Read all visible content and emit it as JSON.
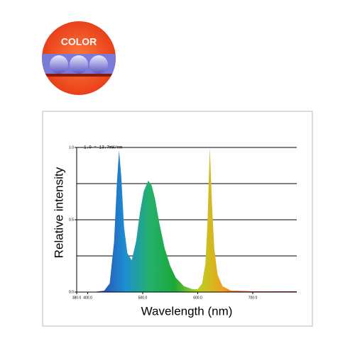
{
  "badge": {
    "label": "COLOR"
  },
  "chart_data": {
    "type": "area",
    "annotation": "1.0 = 13.7mW/nm",
    "x_label": "Wavelength (nm)",
    "y_label": "Relative intensity",
    "x": [
      380,
      410,
      430,
      440,
      448,
      453,
      457,
      461,
      466,
      472,
      480,
      488,
      495,
      502,
      510,
      516,
      522,
      530,
      540,
      550,
      560,
      575,
      590,
      600,
      608,
      614,
      618,
      622,
      626,
      630,
      636,
      645,
      660,
      700,
      780
    ],
    "values": [
      0,
      0,
      0.01,
      0.06,
      0.35,
      0.75,
      0.98,
      0.8,
      0.45,
      0.27,
      0.22,
      0.35,
      0.55,
      0.7,
      0.77,
      0.74,
      0.65,
      0.48,
      0.3,
      0.18,
      0.1,
      0.04,
      0.02,
      0.02,
      0.06,
      0.2,
      0.5,
      1.0,
      0.6,
      0.3,
      0.12,
      0.04,
      0.01,
      0.005,
      0.005
    ],
    "xlim": [
      380,
      780
    ],
    "xticks": [
      {
        "value": 380,
        "label": "380.0"
      },
      {
        "value": 400,
        "label": "400.0"
      },
      {
        "value": 500,
        "label": "500.0"
      },
      {
        "value": 600,
        "label": "600.0"
      },
      {
        "value": 700,
        "label": "700.0"
      }
    ],
    "ylim": [
      0,
      1
    ],
    "yticks": [
      {
        "value": 0,
        "label": "0.0"
      },
      {
        "value": 0.5,
        "label": "0.5"
      },
      {
        "value": 1,
        "label": "1.0"
      }
    ],
    "grid_lines": [
      0.25,
      0.5,
      0.75,
      1
    ],
    "gradient_colors": [
      "#4a2a8a",
      "#2a4fb8",
      "#1d8fd0",
      "#25b06a",
      "#1aa83a",
      "#b8d020",
      "#f0a020",
      "#e8281e",
      "#d01818",
      "#a01010"
    ]
  }
}
